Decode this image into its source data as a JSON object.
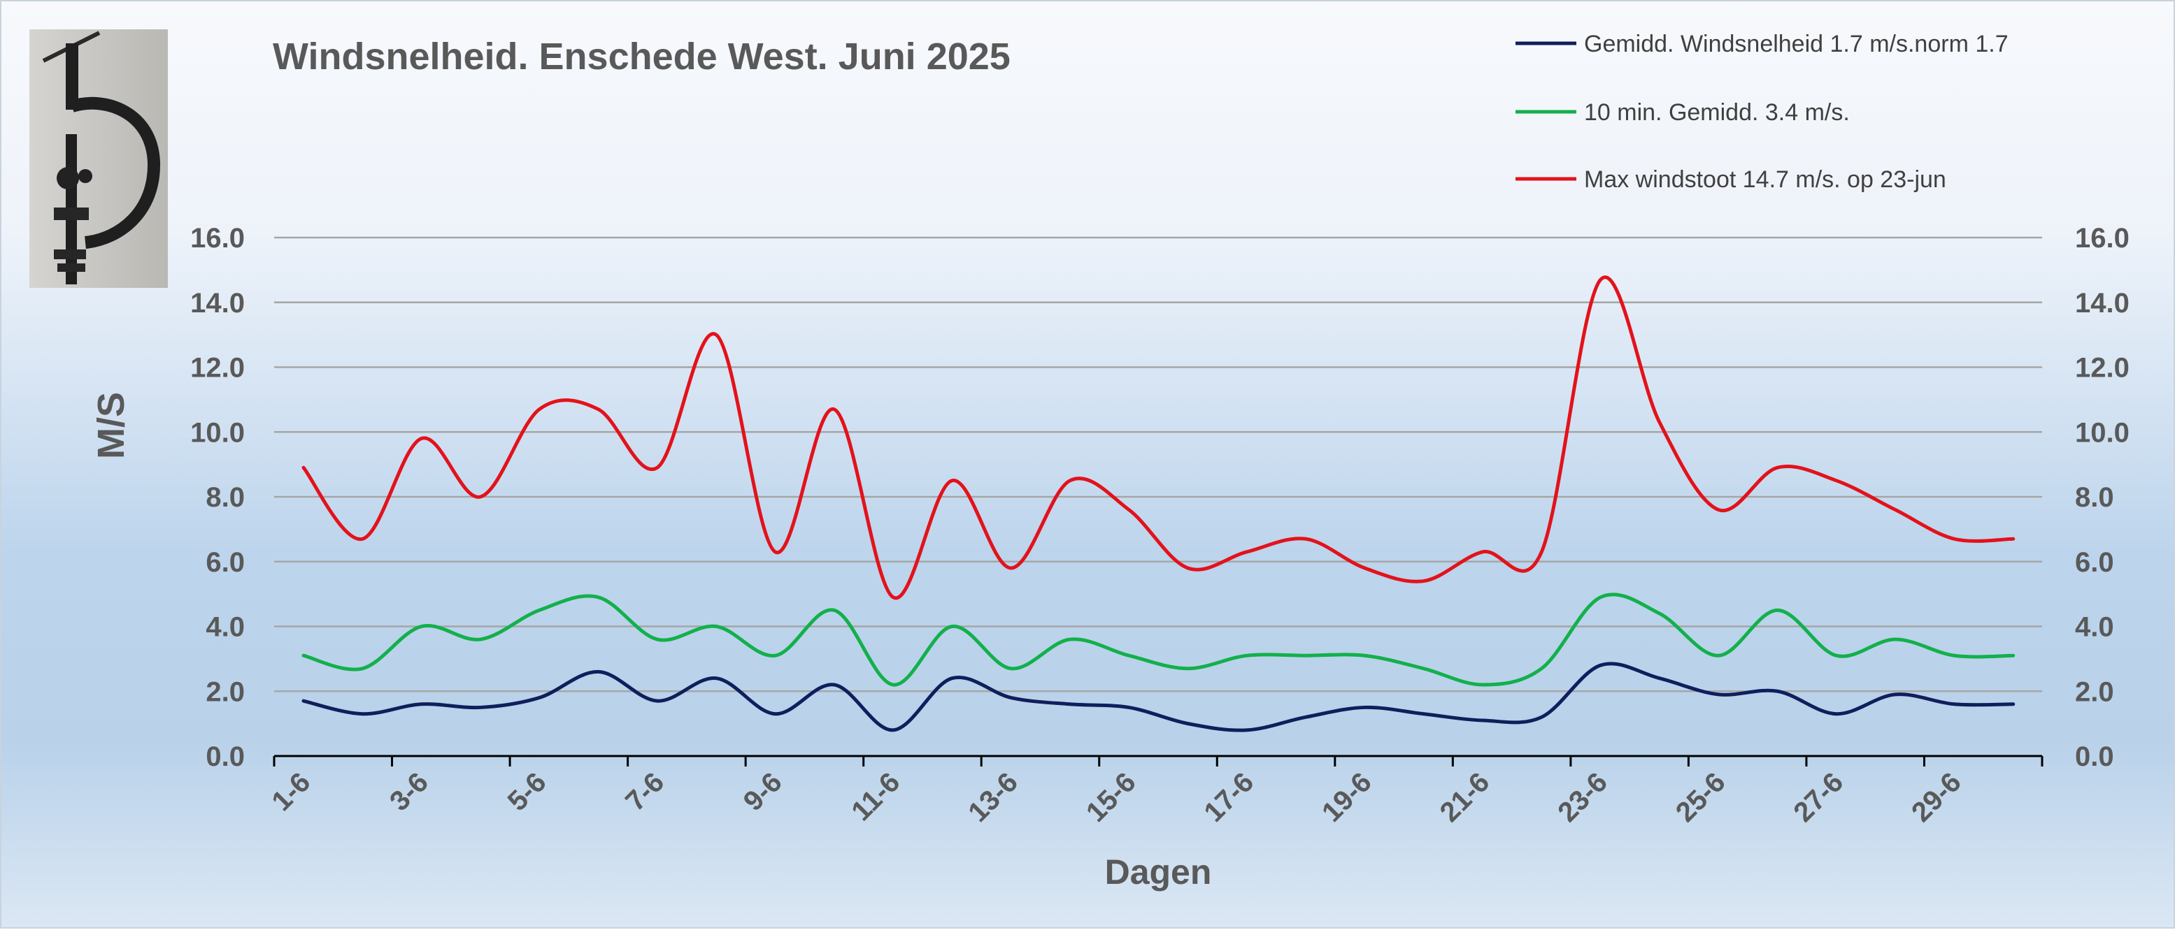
{
  "chart_data": {
    "type": "line",
    "title": "Windsnelheid. Enschede West. Juni 2025",
    "xlabel": "Dagen",
    "ylabel": "M/S",
    "ylim": [
      0,
      16
    ],
    "y_ticks": [
      "0.0",
      "2.0",
      "4.0",
      "6.0",
      "8.0",
      "10.0",
      "12.0",
      "14.0",
      "16.0"
    ],
    "secondary_y_axis": true,
    "grid": true,
    "legend_position": "top-right",
    "x": [
      1,
      2,
      3,
      4,
      5,
      6,
      7,
      8,
      9,
      10,
      11,
      12,
      13,
      14,
      15,
      16,
      17,
      18,
      19,
      20,
      21,
      22,
      23,
      24,
      25,
      26,
      27,
      28,
      29,
      30
    ],
    "x_tick_labels": [
      "1-6",
      "3-6",
      "5-6",
      "7-6",
      "9-6",
      "11-6",
      "13-6",
      "15-6",
      "17-6",
      "19-6",
      "21-6",
      "23-6",
      "25-6",
      "27-6",
      "29-6"
    ],
    "series": [
      {
        "name": "Gemidd. Windsnelheid 1.7 m/s.norm 1.7",
        "color": "#0f1f5c",
        "values": [
          1.7,
          1.3,
          1.6,
          1.5,
          1.8,
          2.6,
          1.7,
          2.4,
          1.3,
          2.2,
          0.8,
          2.4,
          1.8,
          1.6,
          1.5,
          1.0,
          0.8,
          1.2,
          1.5,
          1.3,
          1.1,
          1.2,
          2.8,
          2.4,
          1.9,
          2.0,
          1.3,
          1.9,
          1.6,
          1.6
        ]
      },
      {
        "name": "10 min. Gemidd. 3.4 m/s.",
        "color": "#13b04b",
        "values": [
          3.1,
          2.7,
          4.0,
          3.6,
          4.5,
          4.9,
          3.6,
          4.0,
          3.1,
          4.5,
          2.2,
          4.0,
          2.7,
          3.6,
          3.1,
          2.7,
          3.1,
          3.1,
          3.1,
          2.7,
          2.2,
          2.7,
          4.9,
          4.4,
          3.1,
          4.5,
          3.1,
          3.6,
          3.1,
          3.1
        ]
      },
      {
        "name": "Max windstoot 14.7 m/s.   op 23-jun",
        "color": "#e3121b",
        "values": [
          8.9,
          6.7,
          9.8,
          8.0,
          10.7,
          10.7,
          8.9,
          13.0,
          6.3,
          10.7,
          4.9,
          8.5,
          5.8,
          8.5,
          7.6,
          5.8,
          6.3,
          6.7,
          5.8,
          5.4,
          6.3,
          6.3,
          14.7,
          10.3,
          7.6,
          8.9,
          8.5,
          7.6,
          6.7,
          6.7
        ]
      }
    ]
  },
  "photo": {
    "icon": "anemometer-photo-icon"
  }
}
